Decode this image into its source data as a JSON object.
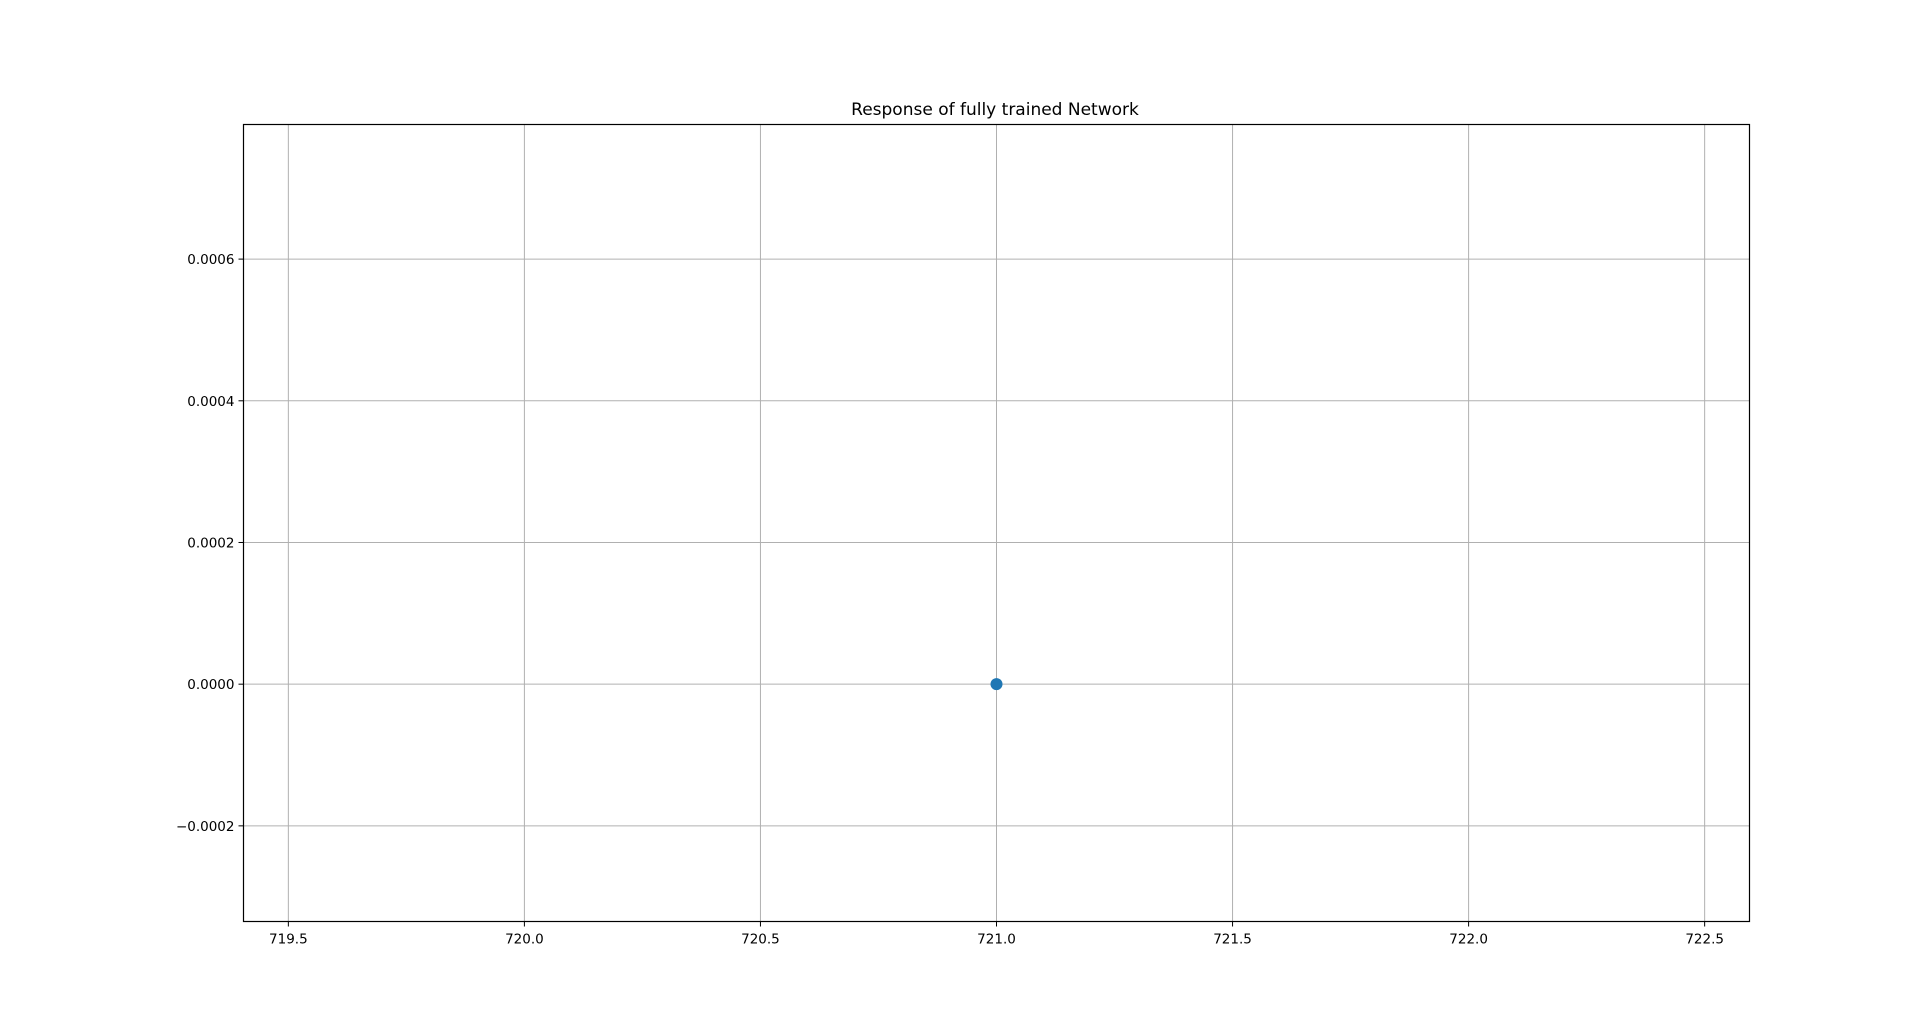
{
  "chart_data": {
    "type": "scatter",
    "title": "Response of fully trained Network",
    "xlabel": "",
    "ylabel": "",
    "xlim": [
      719.405,
      722.595
    ],
    "ylim": [
      -0.000335,
      0.00079
    ],
    "xticks": [
      719.5,
      720.0,
      720.5,
      721.0,
      721.5,
      722.0,
      722.5
    ],
    "xtick_labels": [
      "719.5",
      "720.0",
      "720.5",
      "721.0",
      "721.5",
      "722.0",
      "722.5"
    ],
    "yticks": [
      -0.0002,
      0.0,
      0.0002,
      0.0004,
      0.0006
    ],
    "ytick_labels": [
      "−0.0002",
      "0.0000",
      "0.0002",
      "0.0004",
      "0.0006"
    ],
    "grid": true,
    "legend": "none",
    "series": [
      {
        "x": [
          721.0
        ],
        "y": [
          0.0
        ],
        "color": "#1f77b4"
      }
    ]
  }
}
